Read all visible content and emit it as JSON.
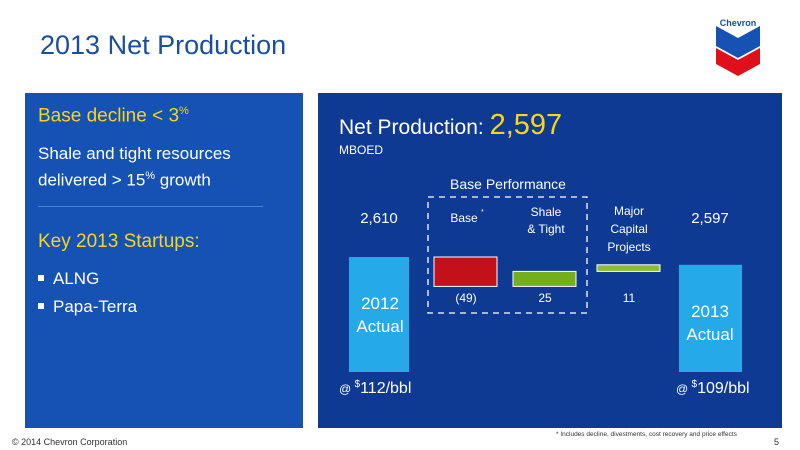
{
  "title": "2013 Net Production",
  "logo_text": "Chevron",
  "left_panel": {
    "heading1": "Base decline < 3",
    "heading1_sup": "%",
    "text1_line1": "Shale and tight resources",
    "text1_line2a": "delivered > 15",
    "text1_sup": "%",
    "text1_line2b": " growth",
    "heading2": "Key 2013 Startups:",
    "items": [
      "ALNG",
      "Papa-Terra"
    ]
  },
  "chart_data": {
    "type": "bar",
    "title": "Net Production: ",
    "title_value": "2,597",
    "unit": "MBOED",
    "group_label": "Base Performance",
    "categories": [
      "2012 Actual",
      "Base",
      "Shale & Tight",
      "Major Capital Projects",
      "2013 Actual"
    ],
    "values": [
      2610,
      -49,
      25,
      11,
      2597
    ],
    "value_labels": [
      "2,610",
      "(49)",
      "25",
      "11",
      "2,597"
    ],
    "category_labels": [
      [
        "2012",
        "Actual"
      ],
      [
        "Base"
      ],
      [
        "Shale",
        "& Tight"
      ],
      [
        "Major",
        "Capital",
        "Projects"
      ],
      [
        "2013",
        "Actual"
      ]
    ],
    "base_marker": "*",
    "price_labels": [
      "@ ",
      "$",
      "112/bbl",
      "@ ",
      "$",
      "109/bbl"
    ],
    "colors": {
      "total": "#25a9e8",
      "negative": "#c4101b",
      "shale": "#76ad1d",
      "projects": "#8cbc2f",
      "title_value": "#f5d51e"
    }
  },
  "footnote": "* Includes decline, divestments, cost recovery and price effects",
  "footer": {
    "copyright": "© 2014 Chevron Corporation",
    "page": "5"
  }
}
